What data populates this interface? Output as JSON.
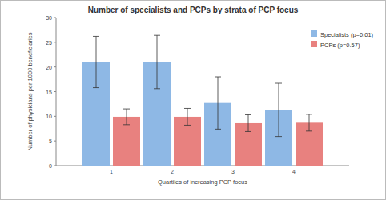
{
  "chart_data": {
    "type": "bar",
    "title": "Number of specialists and PCPs by strata of PCP focus",
    "x_label": "Quartiles of increasing PCP focus",
    "y_label": "Number of physicians per 1000 beneficiaries",
    "categories": [
      "1",
      "2",
      "3",
      "4"
    ],
    "series": [
      {
        "name": "Specialists (p=0.01)",
        "color": "#8eb8e5",
        "values": [
          21,
          21,
          12.7,
          11.3
        ],
        "errors": [
          5.2,
          5.4,
          5.3,
          5.4
        ]
      },
      {
        "name": "PCPs (p=0.57)",
        "color": "#e8817f",
        "values": [
          9.9,
          9.9,
          8.6,
          8.7
        ],
        "errors": [
          1.6,
          1.7,
          1.7,
          1.7
        ]
      }
    ],
    "ylim": [
      0,
      30
    ],
    "yticks": [
      0,
      5,
      10,
      15,
      20,
      25,
      30
    ],
    "legend": "upper-right",
    "grid": false
  }
}
